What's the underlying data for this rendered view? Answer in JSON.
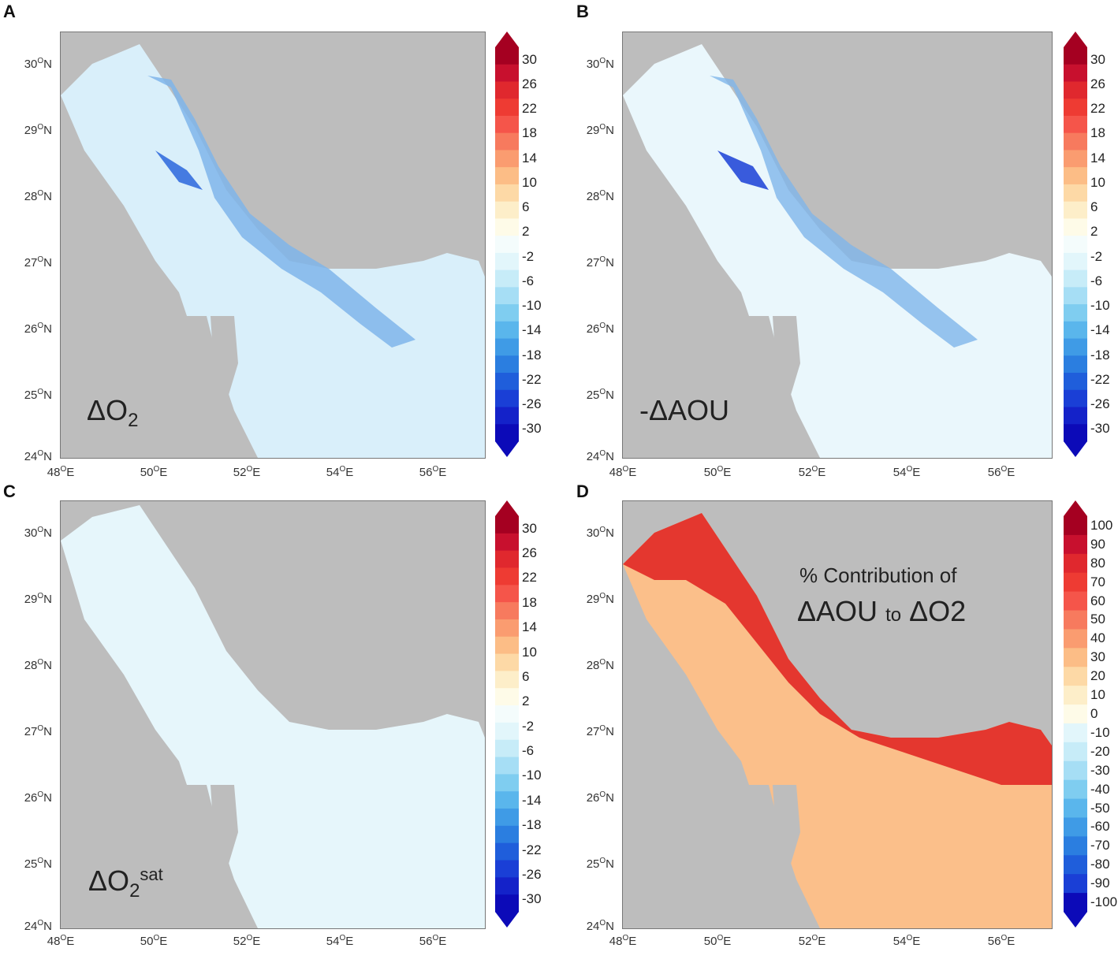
{
  "panels": [
    {
      "id": "A",
      "letter": "A",
      "label_main": "ΔO",
      "label_sub": "2",
      "label_sup": "",
      "scale": "o2"
    },
    {
      "id": "B",
      "letter": "B",
      "label_main": "-ΔAOU",
      "label_sub": "",
      "label_sup": "",
      "scale": "o2"
    },
    {
      "id": "C",
      "letter": "C",
      "label_main": "ΔO",
      "label_sub": "2",
      "label_sup": "sat",
      "scale": "o2"
    },
    {
      "id": "D",
      "letter": "D",
      "label_line1": "% Contribution of",
      "label_aou": "ΔAOU",
      "label_to": "to",
      "label_o2": "ΔO2",
      "scale": "pct"
    }
  ],
  "axes": {
    "lat_labels": [
      "30",
      "29",
      "28",
      "27",
      "26",
      "25",
      "24"
    ],
    "lat_suffix": "N",
    "lon_labels": [
      "48",
      "50",
      "52",
      "54",
      "56"
    ],
    "lon_suffix": "E",
    "degree_mark": "O"
  },
  "colorbars": {
    "o2": {
      "ticks": [
        "30",
        "26",
        "22",
        "18",
        "14",
        "10",
        "6",
        "2",
        "-2",
        "-6",
        "-10",
        "-14",
        "-18",
        "-22",
        "-26",
        "-30"
      ],
      "colors": [
        "#a50021",
        "#c8102e",
        "#e0282e",
        "#ee3b33",
        "#f5554a",
        "#f77a5e",
        "#fa9c70",
        "#fcbd86",
        "#fdd9a6",
        "#fdeec9",
        "#fefbe8",
        "#f4fcfc",
        "#e2f6fb",
        "#c7ecf8",
        "#a6def5",
        "#7fcdf0",
        "#5ab6ec",
        "#3f9be6",
        "#2b7ee0",
        "#1f5edb",
        "#1a3fd6",
        "#1422c9",
        "#0c0ab8"
      ]
    },
    "pct": {
      "ticks": [
        "100",
        "90",
        "80",
        "70",
        "60",
        "50",
        "40",
        "30",
        "20",
        "10",
        "0",
        "-10",
        "-20",
        "-30",
        "-40",
        "-50",
        "-60",
        "-70",
        "-80",
        "-90",
        "-100"
      ],
      "colors": [
        "#a50021",
        "#c8102e",
        "#e0282e",
        "#ee3b33",
        "#f5554a",
        "#f77a5e",
        "#fa9c70",
        "#fcbd86",
        "#fdd9a6",
        "#fdeec9",
        "#fefbe8",
        "#e2f6fb",
        "#c7ecf8",
        "#a6def5",
        "#7fcdf0",
        "#5ab6ec",
        "#3f9be6",
        "#2b7ee0",
        "#1f5edb",
        "#1a3fd6",
        "#0c0ab8"
      ]
    }
  },
  "colors": {
    "land": "#bdbdbd",
    "sea_o2": "#d6eefa",
    "sea_sat": "#e4f5fb"
  }
}
